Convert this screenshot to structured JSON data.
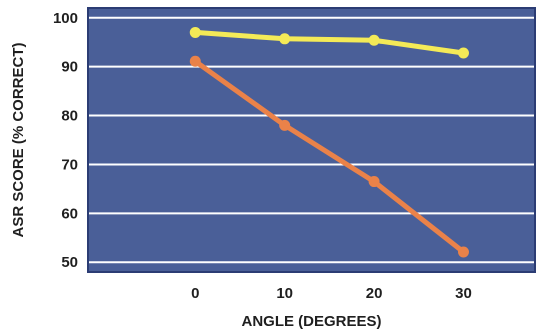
{
  "chart_data": {
    "type": "line",
    "xlabel": "ANGLE (DEGREES)",
    "ylabel": "ASR SCORE (% CORRECT)",
    "x": [
      0,
      10,
      20,
      30
    ],
    "x_tick_labels": [
      "0",
      "10",
      "20",
      "30"
    ],
    "y_tick_labels": [
      "50",
      "60",
      "70",
      "80",
      "90",
      "100"
    ],
    "y_ticks": [
      50,
      60,
      70,
      80,
      90,
      100
    ],
    "xlim": [
      -12,
      38
    ],
    "ylim": [
      48,
      102
    ],
    "grid": "horizontal",
    "legend": "none",
    "series": [
      {
        "values": [
          97,
          95.7,
          95.4,
          92.8
        ],
        "color": "#f4ea57"
      },
      {
        "values": [
          91.1,
          78,
          66.5,
          52.1
        ],
        "color": "#ea8249"
      }
    ]
  },
  "colors": {
    "plot_background": "#4a5f98",
    "plot_border": "#2b3c74",
    "gridline": "#ffffff"
  }
}
